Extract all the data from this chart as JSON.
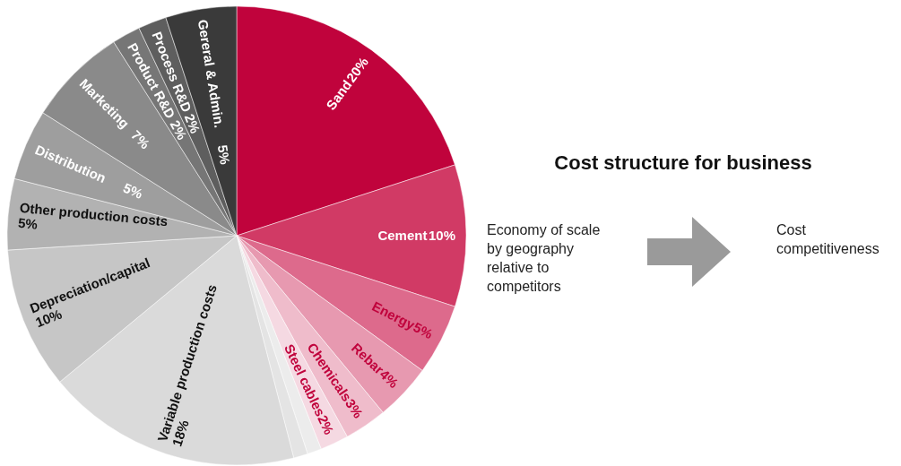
{
  "chart_data": {
    "type": "pie",
    "title": "Cost structure for business",
    "categories": [
      "Sand",
      "Cement",
      "Energy",
      "Rebar",
      "Chemicals",
      "Steel cables",
      null,
      null,
      "Variable production costs",
      "Depreciation/capital",
      "Other production costs",
      "Distribution",
      "Marketing",
      "Product R&D",
      "Process R&D",
      "Gereral & Admin."
    ],
    "values": [
      20,
      10,
      5,
      4,
      3,
      2,
      1,
      1,
      18,
      10,
      5,
      5,
      7,
      2,
      2,
      5
    ],
    "colors": [
      "#c0033c",
      "#d13a65",
      "#dd6a8c",
      "#e799b0",
      "#efbccb",
      "#f5d9e2",
      "#ececec",
      "#e4e4e4",
      "#dadada",
      "#c6c6c6",
      "#b2b2b2",
      "#9e9e9e",
      "#8a8a8a",
      "#767676",
      "#5e5e5e",
      "#3a3a3a"
    ],
    "value_labels": [
      "20%",
      "10%",
      "5%",
      "4%",
      "3%",
      "2%",
      null,
      null,
      "18%",
      "10%",
      "5%",
      "5%",
      "7%",
      "2%",
      "2%",
      "5%"
    ],
    "annotations": [
      "Economy of scale by geography relative to competitors",
      "Cost competitiveness"
    ]
  }
}
